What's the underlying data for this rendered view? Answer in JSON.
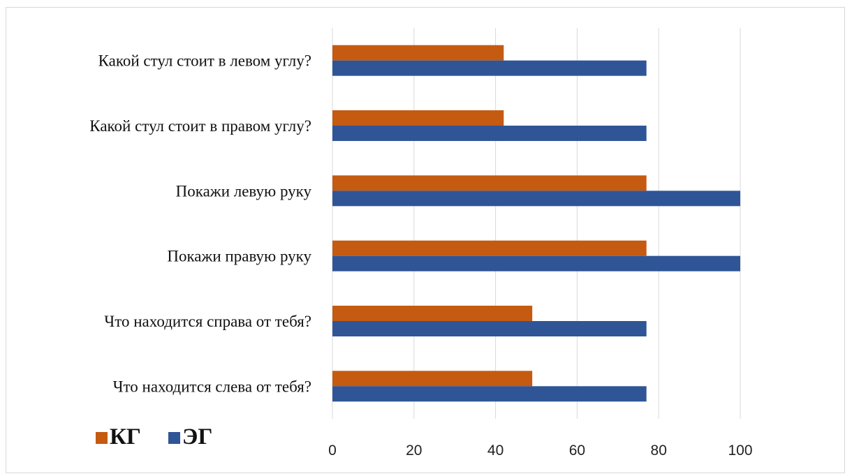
{
  "chart_data": {
    "type": "bar",
    "orientation": "horizontal",
    "categories": [
      "Какой стул стоит в левом углу?",
      "Какой стул стоит в правом углу?",
      "Покажи левую руку",
      "Покажи правую руку",
      "Что находится справа от тебя?",
      "Что находится слева от тебя?"
    ],
    "series": [
      {
        "name": "КГ",
        "color": "#c55a11",
        "values": [
          42,
          42,
          77,
          77,
          49,
          49
        ]
      },
      {
        "name": "ЭГ",
        "color": "#2f5597",
        "values": [
          77,
          77,
          100,
          100,
          77,
          77
        ]
      }
    ],
    "xlim": [
      0,
      100
    ],
    "xticks": [
      0,
      20,
      40,
      60,
      80,
      100
    ],
    "title": "",
    "xlabel": "",
    "ylabel": "",
    "grid": "vertical",
    "legend_position": "bottom-left"
  }
}
